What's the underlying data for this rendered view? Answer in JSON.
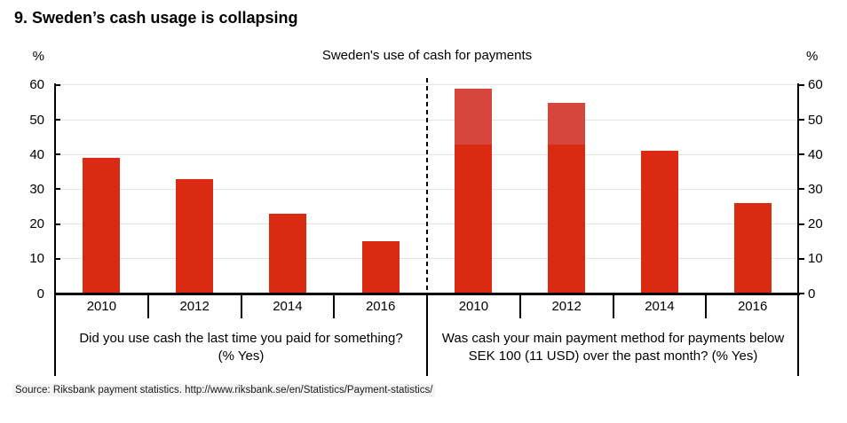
{
  "page": {
    "title": "9. Sweden’s cash usage is collapsing"
  },
  "source_note": "Source: Riksbank payment statistics. http://www.riksbank.se/en/Statistics/Payment-statistics/",
  "chart_data": {
    "type": "bar",
    "title": "Sweden's use of cash for payments",
    "y_unit": "%",
    "ylim": [
      0,
      60
    ],
    "yticks": [
      0,
      10,
      20,
      30,
      40,
      50,
      60
    ],
    "grid": true,
    "dual_axis": true,
    "categories": [
      "2010",
      "2012",
      "2014",
      "2016"
    ],
    "panels": [
      {
        "id": "left",
        "caption_line1": "Did you use cash the last time you paid for something?",
        "caption_line2": "(% Yes)",
        "bars": [
          {
            "category": "2010",
            "value": 39
          },
          {
            "category": "2012",
            "value": 33
          },
          {
            "category": "2014",
            "value": 23
          },
          {
            "category": "2016",
            "value": 15
          }
        ]
      },
      {
        "id": "right",
        "caption_line1": "Was cash your main payment method for payments below",
        "caption_line2": "SEK 100 (11 USD) over the past month? (% Yes)",
        "bars": [
          {
            "category": "2010",
            "value": 59,
            "solid_to": 43
          },
          {
            "category": "2012",
            "value": 55,
            "solid_to": 43
          },
          {
            "category": "2014",
            "value": 41
          },
          {
            "category": "2016",
            "value": 26
          }
        ]
      }
    ],
    "colors": {
      "bar": "#DB2A12",
      "bar_overlay_top": "#D6463C",
      "grid": "#E4E4E4",
      "axis": "#000000"
    }
  }
}
